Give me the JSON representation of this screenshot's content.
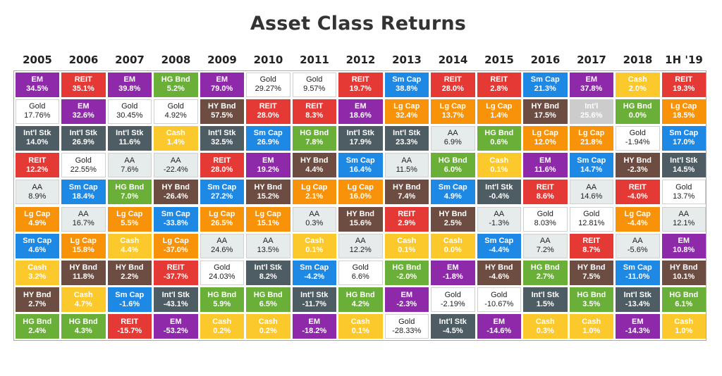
{
  "title": "Asset Class Returns",
  "colors": {
    "EM": "#8e2aa9",
    "REIT": "#e53935",
    "Gold": "#ffffff",
    "Int'l Stk": "#4e5d64",
    "Intl": "#4e5d64",
    "AA": "#e6ebec",
    "Lg Cap": "#f79209",
    "Sm Cap": "#1e88e5",
    "Cash": "#fbc92c",
    "HY Bnd": "#6d4c41",
    "HG Bnd": "#6ab038"
  },
  "chart_data": {
    "type": "table",
    "title": "Asset Class Returns",
    "years": [
      "2005",
      "2006",
      "2007",
      "2008",
      "2009",
      "2010",
      "2011",
      "2012",
      "2013",
      "2014",
      "2015",
      "2016",
      "2017",
      "2018",
      "1H '19"
    ],
    "columns": [
      [
        [
          "EM",
          "34.5%"
        ],
        [
          "Gold",
          "17.76%"
        ],
        [
          "Int'l Stk",
          "14.0%"
        ],
        [
          "REIT",
          "12.2%"
        ],
        [
          "AA",
          "8.9%"
        ],
        [
          "Lg Cap",
          "4.9%"
        ],
        [
          "Sm Cap",
          "4.6%"
        ],
        [
          "Cash",
          "3.2%"
        ],
        [
          "HY Bnd",
          "2.7%"
        ],
        [
          "HG Bnd",
          "2.4%"
        ]
      ],
      [
        [
          "REIT",
          "35.1%"
        ],
        [
          "EM",
          "32.6%"
        ],
        [
          "Int'l Stk",
          "26.9%"
        ],
        [
          "Gold",
          "22.55%"
        ],
        [
          "Sm Cap",
          "18.4%"
        ],
        [
          "AA",
          "16.7%"
        ],
        [
          "Lg Cap",
          "15.8%"
        ],
        [
          "HY Bnd",
          "11.8%"
        ],
        [
          "Cash",
          "4.7%"
        ],
        [
          "HG Bnd",
          "4.3%"
        ]
      ],
      [
        [
          "EM",
          "39.8%"
        ],
        [
          "Gold",
          "30.45%"
        ],
        [
          "Int'l Stk",
          "11.6%"
        ],
        [
          "AA",
          "7.6%"
        ],
        [
          "HG Bnd",
          "7.0%"
        ],
        [
          "Lg Cap",
          "5.5%"
        ],
        [
          "Cash",
          "4.4%"
        ],
        [
          "HY Bnd",
          "2.2%"
        ],
        [
          "Sm Cap",
          "-1.6%"
        ],
        [
          "REIT",
          "-15.7%"
        ]
      ],
      [
        [
          "HG Bnd",
          "5.2%"
        ],
        [
          "Gold",
          "4.92%"
        ],
        [
          "Cash",
          "1.4%"
        ],
        [
          "AA",
          "-22.4%"
        ],
        [
          "HY Bnd",
          "-26.4%"
        ],
        [
          "Sm Cap",
          "-33.8%"
        ],
        [
          "Lg Cap",
          "-37.0%"
        ],
        [
          "REIT",
          "-37.7%"
        ],
        [
          "Int'l Stk",
          "-43.1%"
        ],
        [
          "EM",
          "-53.2%"
        ]
      ],
      [
        [
          "EM",
          "79.0%"
        ],
        [
          "HY Bnd",
          "57.5%"
        ],
        [
          "Int'l Stk",
          "32.5%"
        ],
        [
          "REIT",
          "28.0%"
        ],
        [
          "Sm Cap",
          "27.2%"
        ],
        [
          "Lg Cap",
          "26.5%"
        ],
        [
          "AA",
          "24.6%"
        ],
        [
          "Gold",
          "24.03%"
        ],
        [
          "HG Bnd",
          "5.9%"
        ],
        [
          "Cash",
          "0.2%"
        ]
      ],
      [
        [
          "Gold",
          "29.27%"
        ],
        [
          "REIT",
          "28.0%"
        ],
        [
          "Sm Cap",
          "26.9%"
        ],
        [
          "EM",
          "19.2%"
        ],
        [
          "HY Bnd",
          "15.2%"
        ],
        [
          "Lg Cap",
          "15.1%"
        ],
        [
          "AA",
          "13.5%"
        ],
        [
          "Int'l Stk",
          "8.2%"
        ],
        [
          "HG Bnd",
          "6.5%"
        ],
        [
          "Cash",
          "0.2%"
        ]
      ],
      [
        [
          "Gold",
          "9.57%"
        ],
        [
          "REIT",
          "8.3%"
        ],
        [
          "HG Bnd",
          "7.8%"
        ],
        [
          "HY Bnd",
          "4.4%"
        ],
        [
          "Lg Cap",
          "2.1%"
        ],
        [
          "AA",
          "0.3%"
        ],
        [
          "Cash",
          "0.1%"
        ],
        [
          "Sm Cap",
          "-4.2%"
        ],
        [
          "Int'l Stk",
          "-11.7%"
        ],
        [
          "EM",
          "-18.2%"
        ]
      ],
      [
        [
          "REIT",
          "19.7%"
        ],
        [
          "EM",
          "18.6%"
        ],
        [
          "Int'l Stk",
          "17.9%"
        ],
        [
          "Sm Cap",
          "16.4%"
        ],
        [
          "Lg Cap",
          "16.0%"
        ],
        [
          "HY Bnd",
          "15.6%"
        ],
        [
          "AA",
          "12.2%"
        ],
        [
          "Gold",
          "6.6%"
        ],
        [
          "HG Bnd",
          "4.2%"
        ],
        [
          "Cash",
          "0.1%"
        ]
      ],
      [
        [
          "Sm Cap",
          "38.8%"
        ],
        [
          "Lg Cap",
          "32.4%"
        ],
        [
          "Int'l Stk",
          "23.3%"
        ],
        [
          "AA",
          "11.5%"
        ],
        [
          "HY Bnd",
          "7.4%"
        ],
        [
          "REIT",
          "2.9%"
        ],
        [
          "Cash",
          "0.1%"
        ],
        [
          "HG Bnd",
          "-2.0%"
        ],
        [
          "EM",
          "-2.3%"
        ],
        [
          "Gold",
          "-28.33%"
        ]
      ],
      [
        [
          "REIT",
          "28.0%"
        ],
        [
          "Lg Cap",
          "13.7%"
        ],
        [
          "AA",
          "6.9%"
        ],
        [
          "HG Bnd",
          "6.0%"
        ],
        [
          "Sm Cap",
          "4.9%"
        ],
        [
          "HY Bnd",
          "2.5%"
        ],
        [
          "Cash",
          "0.0%"
        ],
        [
          "EM",
          "-1.8%"
        ],
        [
          "Gold",
          "-2.19%"
        ],
        [
          "Int'l Stk",
          "-4.5%"
        ]
      ],
      [
        [
          "REIT",
          "2.8%"
        ],
        [
          "Lg Cap",
          "1.4%"
        ],
        [
          "HG Bnd",
          "0.6%"
        ],
        [
          "Cash",
          "0.1%"
        ],
        [
          "Int'l Stk",
          "-0.4%"
        ],
        [
          "AA",
          "-1.3%"
        ],
        [
          "Sm Cap",
          "-4.4%"
        ],
        [
          "HY Bnd",
          "-4.6%"
        ],
        [
          "Gold",
          "-10.67%"
        ],
        [
          "EM",
          "-14.6%"
        ]
      ],
      [
        [
          "Sm Cap",
          "21.3%"
        ],
        [
          "HY Bnd",
          "17.5%"
        ],
        [
          "Lg Cap",
          "12.0%"
        ],
        [
          "EM",
          "11.6%"
        ],
        [
          "REIT",
          "8.6%"
        ],
        [
          "Gold",
          "8.03%"
        ],
        [
          "AA",
          "7.2%"
        ],
        [
          "HG Bnd",
          "2.7%"
        ],
        [
          "Int'l Stk",
          "1.5%"
        ],
        [
          "Cash",
          "0.3%"
        ]
      ],
      [
        [
          "EM",
          "37.8%"
        ],
        [
          "Int'l",
          "25.6%"
        ],
        [
          "Lg Cap",
          "21.8%"
        ],
        [
          "Sm Cap",
          "14.7%"
        ],
        [
          "AA",
          "14.6%"
        ],
        [
          "Gold",
          "12.81%"
        ],
        [
          "REIT",
          "8.7%"
        ],
        [
          "HY Bnd",
          "7.5%"
        ],
        [
          "HG Bnd",
          "3.5%"
        ],
        [
          "Cash",
          "1.0%"
        ]
      ],
      [
        [
          "Cash",
          "2.0%"
        ],
        [
          "HG Bnd",
          "0.0%"
        ],
        [
          "Gold",
          "-1.94%"
        ],
        [
          "HY Bnd",
          "-2.3%"
        ],
        [
          "REIT",
          "-4.0%"
        ],
        [
          "Lg Cap",
          "-4.4%"
        ],
        [
          "AA",
          "-5.6%"
        ],
        [
          "Sm Cap",
          "-11.0%"
        ],
        [
          "Int'l Stk",
          "-13.4%"
        ],
        [
          "EM",
          "-14.3%"
        ]
      ],
      [
        [
          "REIT",
          "19.3%"
        ],
        [
          "Lg Cap",
          "18.5%"
        ],
        [
          "Sm Cap",
          "17.0%"
        ],
        [
          "Int'l Stk",
          "14.5%"
        ],
        [
          "Gold",
          "13.7%"
        ],
        [
          "AA",
          "12.1%"
        ],
        [
          "EM",
          "10.8%"
        ],
        [
          "HY Bnd",
          "10.1%"
        ],
        [
          "HG Bnd",
          "6.1%"
        ],
        [
          "Cash",
          "1.0%"
        ]
      ]
    ]
  }
}
